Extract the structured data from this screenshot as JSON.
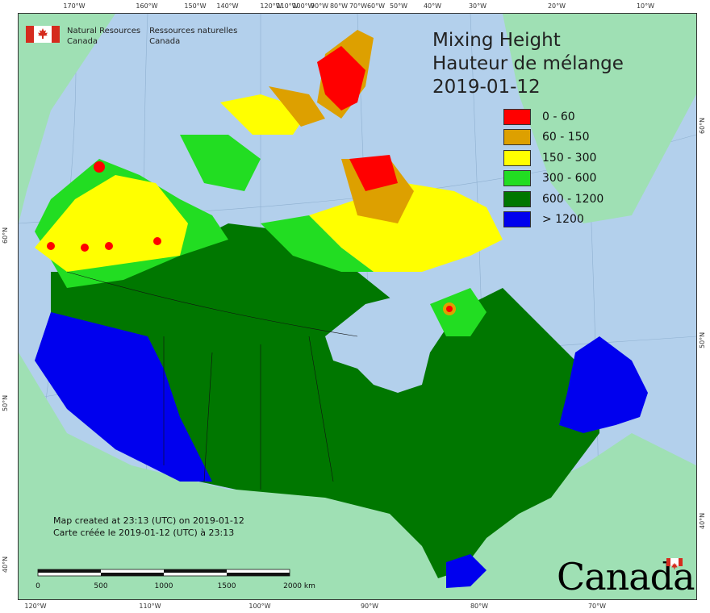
{
  "title": {
    "en": "Mixing Height",
    "fr": "Hauteur de mélange",
    "date": "2019-01-12"
  },
  "legend": [
    {
      "label": "0 - 60",
      "color": "#ff0000"
    },
    {
      "label": "60 - 150",
      "color": "#dda000"
    },
    {
      "label": "150 - 300",
      "color": "#ffff00"
    },
    {
      "label": "300 - 600",
      "color": "#22dd22"
    },
    {
      "label": "600 - 1200",
      "color": "#007700"
    },
    {
      "label": "> 1200",
      "color": "#0000ee"
    }
  ],
  "agency": {
    "en_line1": "Natural Resources",
    "en_line2": "Canada",
    "fr_line1": "Ressources naturelles",
    "fr_line2": "Canada"
  },
  "credits": {
    "line_en": "Map created at 23:13 (UTC) on 2019-01-12",
    "line_fr": "Carte créée le 2019-01-12 (UTC) à 23:13"
  },
  "scale": {
    "labels": [
      "0",
      "500",
      "1000",
      "1500",
      "2000  km"
    ]
  },
  "wordmark": "Canada",
  "graticule": {
    "top": [
      "170°W",
      "160°W",
      "150°W",
      "140°W",
      "120°W",
      "110°W",
      "100°W",
      "90°W",
      "80°W",
      "70°W",
      "60°W",
      "50°W",
      "40°W",
      "30°W",
      "20°W",
      "10°W"
    ],
    "bottom": [
      "120°W",
      "110°W",
      "100°W",
      "90°W",
      "80°W",
      "70°W"
    ],
    "left": [
      "60°N",
      "50°N",
      "40°N"
    ],
    "right": [
      "60°N",
      "50°N",
      "40°N"
    ]
  },
  "colors": {
    "water": "#b3d0ec",
    "land_outside": "#9fe0b4"
  }
}
